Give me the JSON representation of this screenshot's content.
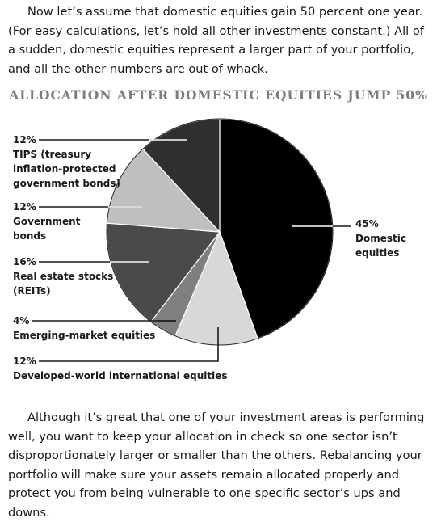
{
  "intro_paragraph": "Now let’s assume that domestic equities gain 50 percent one year. (For easy calculations, let’s hold all other investments constant.) All of a sudden, domestic equities represent a larger part of your portfolio, and all the other numbers are out of whack.",
  "closing_paragraph": "Although it’s great that one of your investment areas is performing well, you want to keep your allocation in check so one sector isn’t disproportionately larger or smaller than the others. Rebalancing your portfolio will make sure your assets remain allocated properly and protect you from being vulnerable to one specific sector’s ups and downs.",
  "chart_data": {
    "type": "pie",
    "title": "ALLOCATION AFTER DOMESTIC EQUITIES JUMP 50%",
    "slices": [
      {
        "label": "Domestic equities",
        "pct_label": "45%",
        "value": 45,
        "color": "#000000"
      },
      {
        "label": "Developed-world international equities",
        "pct_label": "12%",
        "value": 12,
        "color": "#d8d8d8"
      },
      {
        "label": "Emerging-market equities",
        "pct_label": "4%",
        "value": 4,
        "color": "#7f7f7f"
      },
      {
        "label": "Real estate stocks (REITs)",
        "pct_label": "16%",
        "value": 16,
        "color": "#4a4a4a"
      },
      {
        "label": "Government bonds",
        "pct_label": "12%",
        "value": 12,
        "color": "#bfbfbf"
      },
      {
        "label": "TIPS (treasury inflation-protected government bonds)",
        "pct_label": "12%",
        "value": 12,
        "color": "#2f2f2f"
      }
    ],
    "label_lines": {
      "domestic": [
        "Domestic",
        "equities"
      ],
      "developed": [
        "Developed-world international equities"
      ],
      "emerging": [
        "Emerging-market equities"
      ],
      "reits": [
        "Real estate stocks",
        "(REITs)"
      ],
      "govt": [
        "Government",
        "bonds"
      ],
      "tips": [
        "TIPS (treasury",
        "inflation-protected",
        "government bonds)"
      ]
    }
  }
}
